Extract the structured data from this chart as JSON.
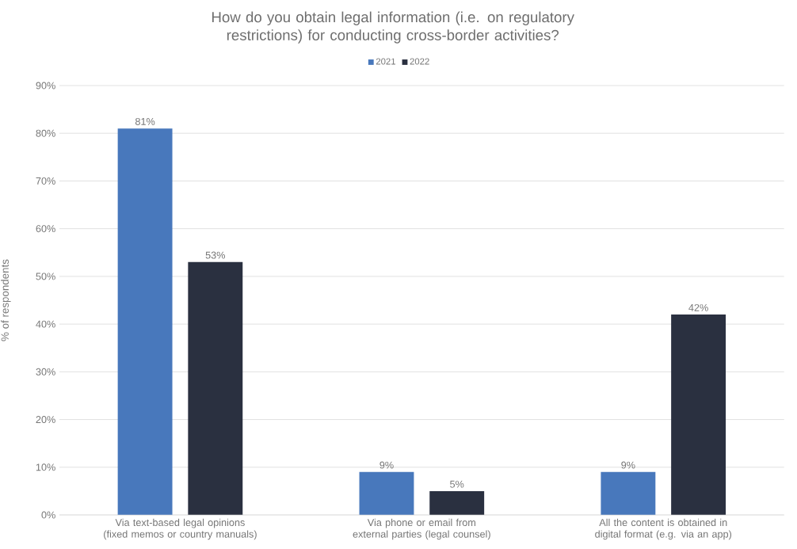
{
  "chart_data": {
    "type": "bar",
    "title": "How do you obtain legal information (i.e. on regulatory restrictions) for conducting cross-border activities?",
    "ylabel": "% of respondents",
    "categories": [
      "Via text-based legal opinions (fixed memos or country manuals)",
      "Via phone or email from external parties (legal counsel)",
      "All the content is obtained in digital format (e.g. via an app)"
    ],
    "series": [
      {
        "name": "2021",
        "color": "#4878bc",
        "values": [
          81,
          9,
          9
        ],
        "value_labels": [
          "81%",
          "9%",
          "9%"
        ]
      },
      {
        "name": "2022",
        "color": "#2a3040",
        "values": [
          53,
          5,
          42
        ],
        "value_labels": [
          "53%",
          "5%",
          "42%"
        ]
      }
    ],
    "ylim": [
      0,
      90
    ],
    "yticks": [
      {
        "value": 0,
        "label": "0%"
      },
      {
        "value": 10,
        "label": "10%"
      },
      {
        "value": 20,
        "label": "20%"
      },
      {
        "value": 30,
        "label": "30%"
      },
      {
        "value": 40,
        "label": "40%"
      },
      {
        "value": 50,
        "label": "50%"
      },
      {
        "value": 60,
        "label": "60%"
      },
      {
        "value": 70,
        "label": "70%"
      },
      {
        "value": 80,
        "label": "80%"
      },
      {
        "value": 90,
        "label": "90%"
      }
    ],
    "grid": "y",
    "legend": "top"
  }
}
